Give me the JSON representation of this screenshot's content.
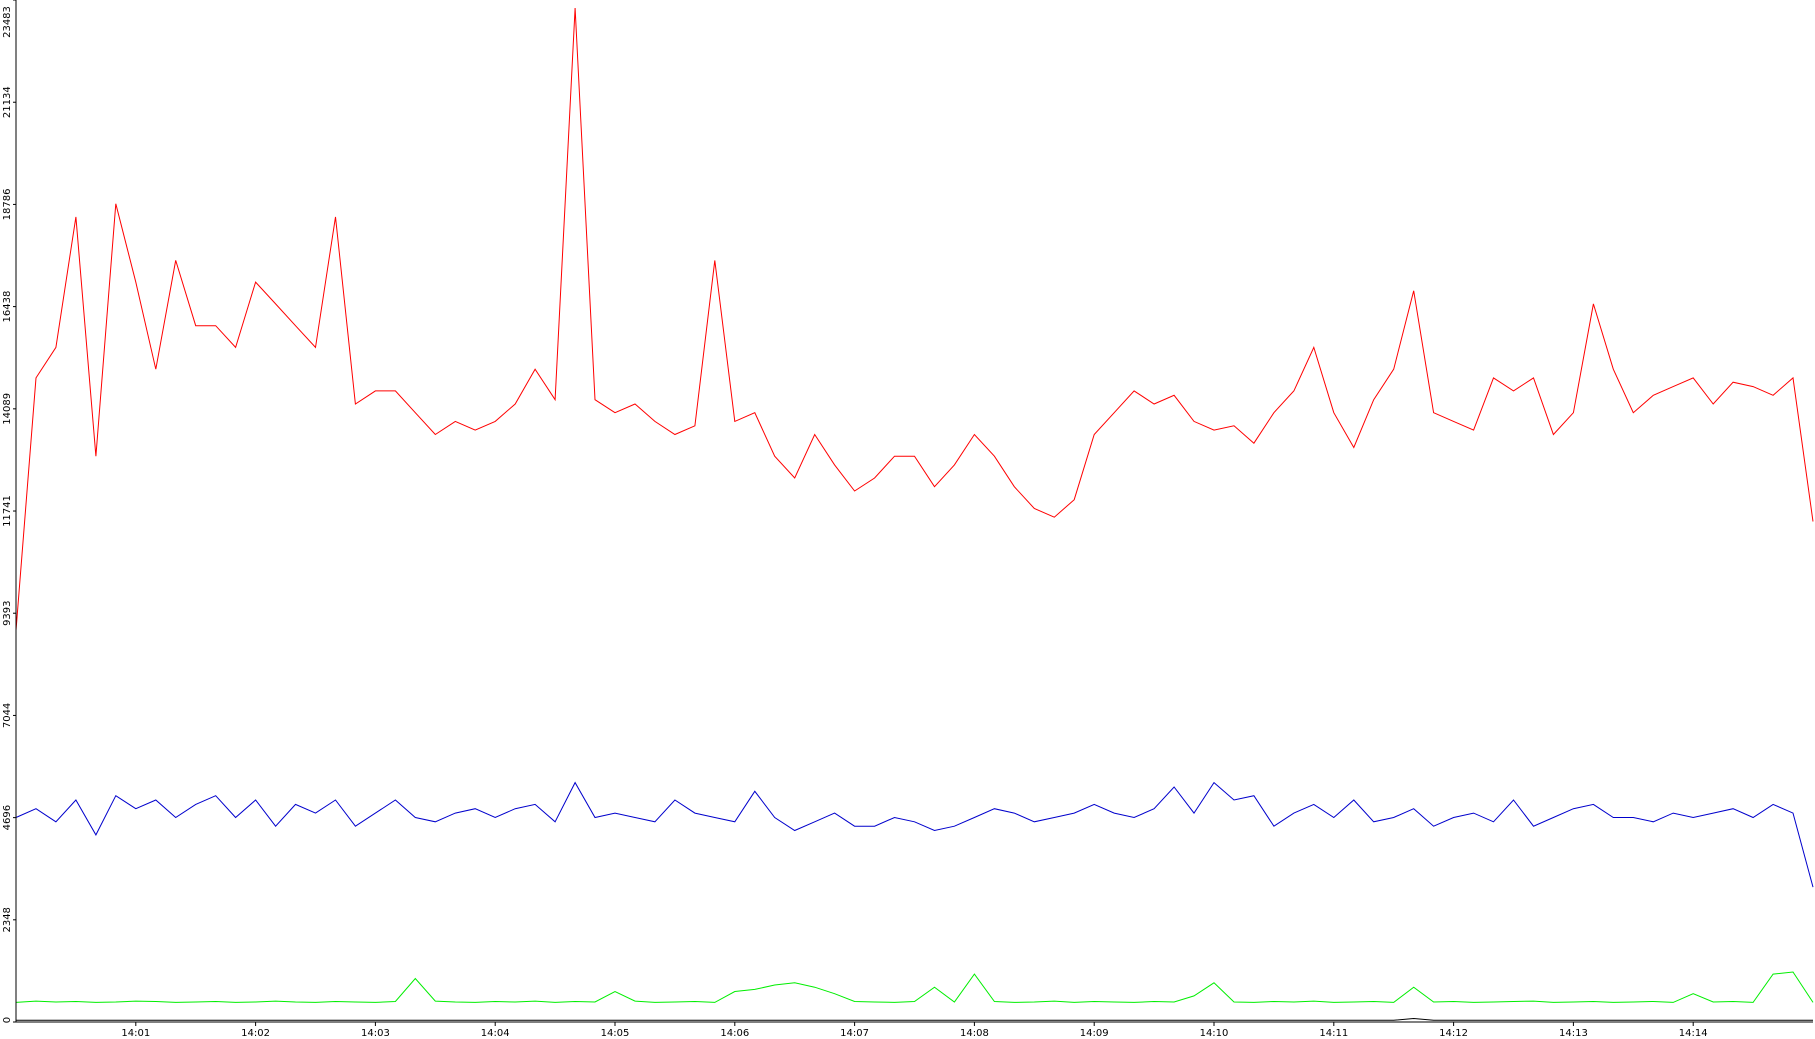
{
  "chart_data": {
    "type": "line",
    "categories": [
      null,
      null,
      null,
      null,
      null,
      null,
      "14:01",
      null,
      null,
      null,
      null,
      null,
      "14:02",
      null,
      null,
      null,
      null,
      null,
      "14:03",
      null,
      null,
      null,
      null,
      null,
      "14:04",
      null,
      null,
      null,
      null,
      null,
      "14:05",
      null,
      null,
      null,
      null,
      null,
      "14:06",
      null,
      null,
      null,
      null,
      null,
      "14:07",
      null,
      null,
      null,
      null,
      null,
      "14:08",
      null,
      null,
      null,
      null,
      null,
      "14:09",
      null,
      null,
      null,
      null,
      null,
      "14:10",
      null,
      null,
      null,
      null,
      null,
      "14:11",
      null,
      null,
      null,
      null,
      null,
      "14:12",
      null,
      null,
      null,
      null,
      null,
      "14:13",
      null,
      null,
      null,
      null,
      null,
      "14:14",
      null,
      null,
      null,
      null,
      null,
      null
    ],
    "series": [
      {
        "color": "#ff0000",
        "values": [
          9000,
          14800,
          15500,
          18500,
          13000,
          18800,
          17000,
          15000,
          17500,
          16000,
          16000,
          15500,
          17000,
          16500,
          16000,
          15500,
          18500,
          14200,
          14500,
          14500,
          14000,
          13500,
          13800,
          13600,
          13800,
          14200,
          15000,
          14300,
          23300,
          14300,
          14000,
          14200,
          13800,
          13500,
          13700,
          17500,
          13800,
          14000,
          13000,
          12500,
          13500,
          12800,
          12200,
          12500,
          13000,
          13000,
          12300,
          12800,
          13500,
          13000,
          12300,
          11800,
          11600,
          12000,
          13500,
          14000,
          14500,
          14200,
          14400,
          13800,
          13600,
          13700,
          13300,
          14000,
          14500,
          15500,
          14000,
          13200,
          14300,
          15000,
          16800,
          14000,
          13800,
          13600,
          14800,
          14500,
          14800,
          13500,
          14000,
          16500,
          15000,
          14000,
          14400,
          14600,
          14800,
          14200,
          14700,
          14600,
          14400,
          14800,
          11500
        ]
      },
      {
        "color": "#0000cc",
        "values": [
          4700,
          4900,
          4600,
          5100,
          4300,
          5200,
          4900,
          5100,
          4700,
          5000,
          5200,
          4700,
          5100,
          4500,
          5000,
          4800,
          5100,
          4500,
          4800,
          5100,
          4700,
          4600,
          4800,
          4900,
          4700,
          4900,
          5000,
          4600,
          5500,
          4700,
          4800,
          4700,
          4600,
          5100,
          4800,
          4700,
          4600,
          5300,
          4700,
          4400,
          4600,
          4800,
          4500,
          4500,
          4700,
          4600,
          4400,
          4500,
          4700,
          4900,
          4800,
          4600,
          4700,
          4800,
          5000,
          4800,
          4700,
          4900,
          5400,
          4800,
          5500,
          5100,
          5200,
          4500,
          4800,
          5000,
          4700,
          5100,
          4600,
          4700,
          4900,
          4500,
          4700,
          4800,
          4600,
          5100,
          4500,
          4700,
          4900,
          5000,
          4700,
          4700,
          4600,
          4800,
          4700,
          4800,
          4900,
          4700,
          5000,
          4800,
          3100
        ]
      },
      {
        "color": "#00ee00",
        "values": [
          450,
          480,
          460,
          470,
          450,
          460,
          480,
          470,
          450,
          460,
          470,
          450,
          460,
          480,
          460,
          450,
          470,
          460,
          450,
          470,
          1000,
          480,
          460,
          450,
          470,
          460,
          480,
          450,
          470,
          460,
          700,
          480,
          450,
          460,
          470,
          450,
          700,
          750,
          850,
          900,
          800,
          650,
          470,
          460,
          450,
          470,
          800,
          460,
          1100,
          470,
          450,
          460,
          480,
          450,
          470,
          460,
          450,
          470,
          460,
          600,
          900,
          460,
          450,
          470,
          460,
          480,
          450,
          460,
          470,
          450,
          800,
          460,
          470,
          450,
          460,
          470,
          480,
          450,
          460,
          470,
          450,
          460,
          470,
          450,
          650,
          460,
          470,
          450,
          1100,
          1150,
          450
        ]
      },
      {
        "color": "#000000",
        "values": [
          40,
          40,
          40,
          40,
          40,
          40,
          40,
          40,
          40,
          40,
          40,
          40,
          40,
          40,
          40,
          40,
          40,
          40,
          40,
          40,
          40,
          40,
          40,
          40,
          40,
          40,
          40,
          40,
          40,
          40,
          40,
          40,
          40,
          40,
          40,
          40,
          40,
          40,
          40,
          40,
          40,
          40,
          40,
          40,
          40,
          40,
          40,
          40,
          40,
          40,
          40,
          40,
          40,
          40,
          40,
          40,
          40,
          40,
          40,
          40,
          40,
          40,
          40,
          40,
          40,
          40,
          40,
          40,
          40,
          40,
          80,
          40,
          40,
          40,
          40,
          40,
          40,
          40,
          40,
          40,
          40,
          40,
          40,
          40,
          40,
          40,
          40,
          40,
          40,
          40,
          40
        ]
      }
    ],
    "ylim": [
      0,
      23483
    ],
    "yticks": [
      0,
      2348,
      4696,
      7044,
      9393,
      11741,
      14089,
      16438,
      18786,
      21134,
      23483
    ]
  }
}
